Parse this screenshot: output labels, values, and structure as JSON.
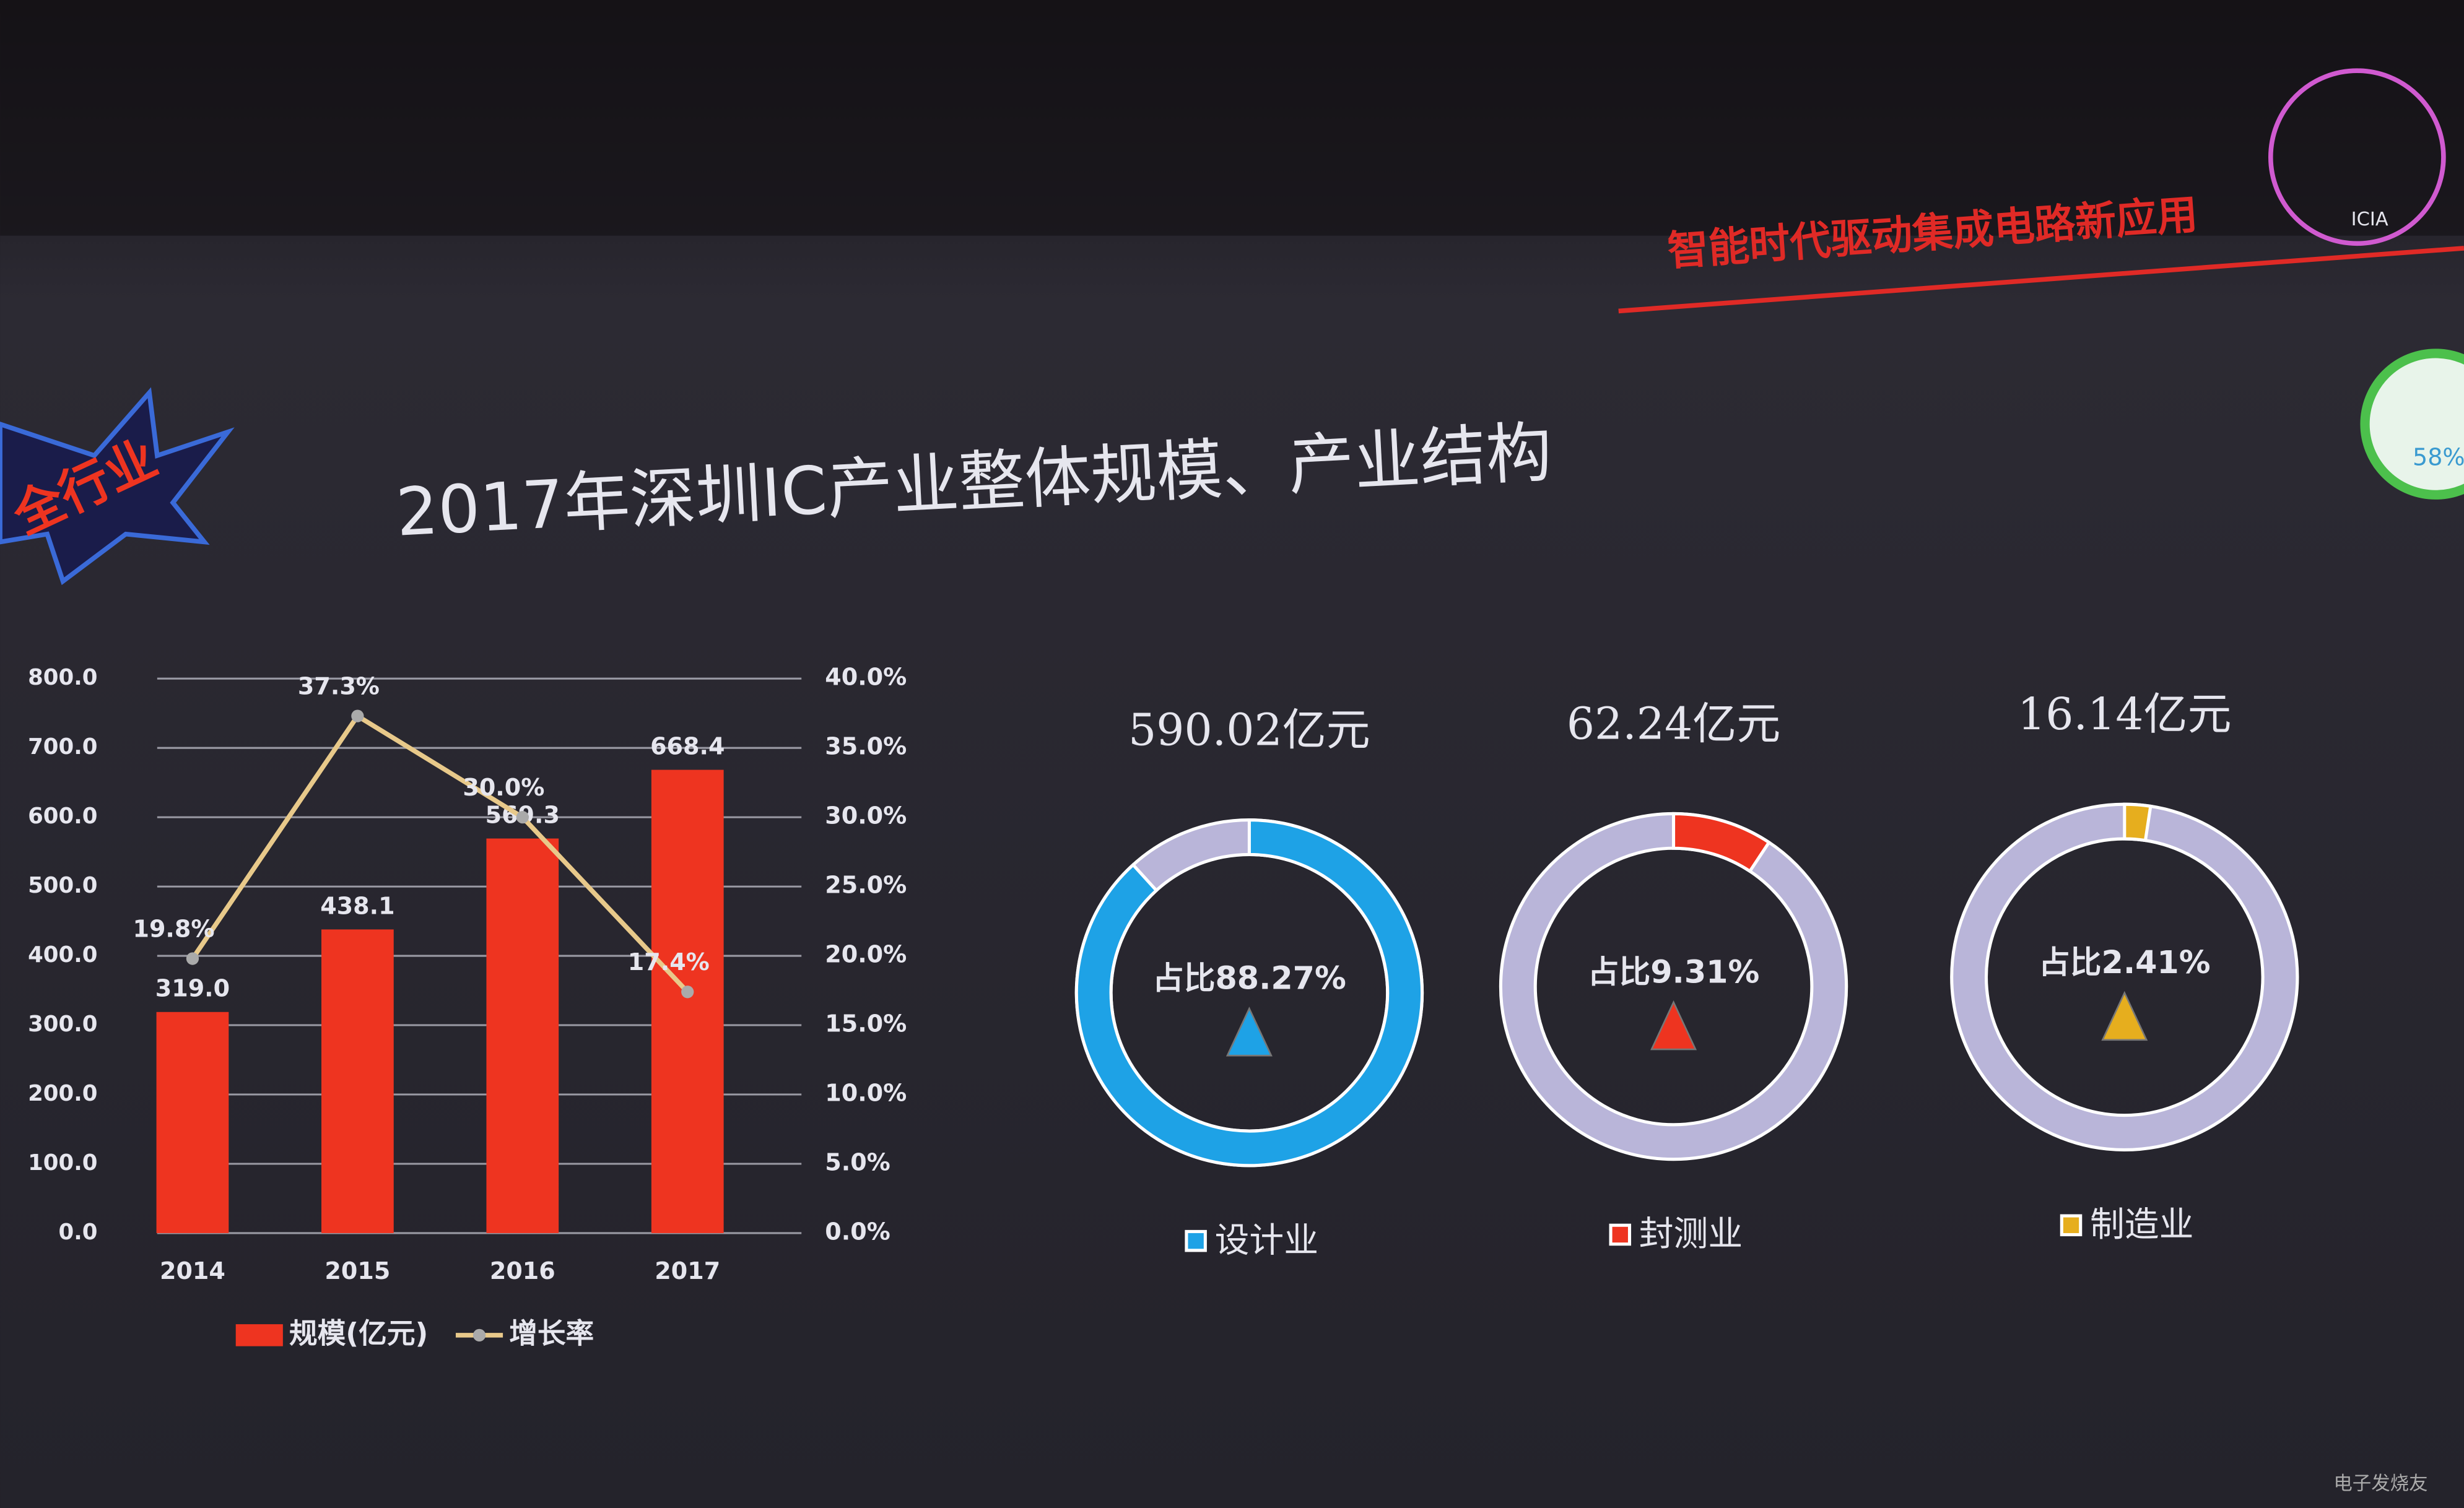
{
  "slide": {
    "title": "2017年深圳IC产业整体规模、产业结构",
    "banner": "智能时代驱动集成电路新应用",
    "badge": "全行业",
    "logo": "ICIA",
    "widget": "58%",
    "watermark": "电子发烧友"
  },
  "chart_data": [
    {
      "type": "bar",
      "categories": [
        "2014",
        "2015",
        "2016",
        "2017"
      ],
      "series": [
        {
          "name": "规模(亿元)",
          "color": "#ee3420",
          "values": [
            319.0,
            438.1,
            569.3,
            668.4
          ],
          "value_labels": [
            "319.0",
            "438.1",
            "569.3",
            "668.4"
          ]
        },
        {
          "name": "增长率",
          "color": "#e8c98a",
          "axis": "y2",
          "values": [
            19.8,
            37.3,
            30.0,
            17.4
          ],
          "value_labels": [
            "19.8%",
            "37.3%",
            "30.0%",
            "17.4%"
          ]
        }
      ],
      "ylim": [
        0,
        800
      ],
      "yticks": [
        {
          "value": 0,
          "label": "0.0"
        },
        {
          "value": 100,
          "label": "100.0"
        },
        {
          "value": 200,
          "label": "200.0"
        },
        {
          "value": 300,
          "label": "300.0"
        },
        {
          "value": 400,
          "label": "400.0"
        },
        {
          "value": 500,
          "label": "500.0"
        },
        {
          "value": 600,
          "label": "600.0"
        },
        {
          "value": 700,
          "label": "700.0"
        },
        {
          "value": 800,
          "label": "800.0"
        }
      ],
      "y2lim": [
        0,
        40
      ],
      "y2ticks": [
        {
          "value": 0,
          "label": "0.0%"
        },
        {
          "value": 5,
          "label": "5.0%"
        },
        {
          "value": 10,
          "label": "10.0%"
        },
        {
          "value": 15,
          "label": "15.0%"
        },
        {
          "value": 20,
          "label": "20.0%"
        },
        {
          "value": 25,
          "label": "25.0%"
        },
        {
          "value": 30,
          "label": "30.0%"
        },
        {
          "value": 35,
          "label": "35.0%"
        },
        {
          "value": 40,
          "label": "40.0%"
        }
      ],
      "grid": true
    },
    {
      "type": "pie",
      "title": "590.02亿元",
      "series": [
        {
          "name": "设计业",
          "color": "#1ea2e6",
          "values": [
            88.27
          ],
          "value_labels": [
            "占比88.27%"
          ]
        }
      ],
      "rest_color": "#b9b5d9"
    },
    {
      "type": "pie",
      "title": "62.24亿元",
      "series": [
        {
          "name": "封测业",
          "color": "#ee3420",
          "values": [
            9.31
          ],
          "value_labels": [
            "占比9.31%"
          ]
        }
      ],
      "rest_color": "#b9b5d9"
    },
    {
      "type": "pie",
      "title": "16.14亿元",
      "series": [
        {
          "name": "制造业",
          "color": "#e6ae1e",
          "values": [
            2.41
          ],
          "value_labels": [
            "占比2.41%"
          ]
        }
      ],
      "rest_color": "#b9b5d9"
    }
  ]
}
